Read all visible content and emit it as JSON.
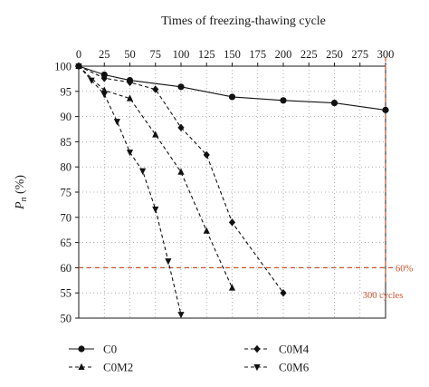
{
  "chart_data": {
    "type": "line",
    "title": "",
    "xlabel": "Times of freezing-thawing cycle",
    "xlabel_position": "top",
    "ylabel_main": "P",
    "ylabel_sub": "n",
    "ylabel_suffix": " (%)",
    "xlim": [
      0,
      300
    ],
    "ylim": [
      50,
      100
    ],
    "x_ticks": [
      0,
      25,
      50,
      75,
      100,
      125,
      150,
      175,
      200,
      225,
      250,
      275,
      300
    ],
    "y_ticks": [
      50,
      55,
      60,
      65,
      70,
      75,
      80,
      85,
      90,
      95,
      100
    ],
    "grid": true,
    "legend_placement": "bottom",
    "series": [
      {
        "name": "C0",
        "marker": "circle",
        "line": "solid",
        "x": [
          0,
          25,
          50,
          100,
          150,
          200,
          250,
          300
        ],
        "y": [
          100,
          98.3,
          97.2,
          95.9,
          93.9,
          93.2,
          92.7,
          91.3
        ]
      },
      {
        "name": "C0M2",
        "marker": "triangle-up",
        "line": "dashed",
        "x": [
          0,
          25,
          50,
          75,
          100,
          125,
          150
        ],
        "y": [
          100,
          95.2,
          93.6,
          86.4,
          79,
          67.3,
          56
        ]
      },
      {
        "name": "C0M4",
        "marker": "diamond",
        "line": "dashed",
        "x": [
          0,
          25,
          50,
          75,
          100,
          125,
          150,
          200
        ],
        "y": [
          100,
          97.6,
          96.8,
          95.4,
          87.8,
          82.4,
          69,
          55
        ]
      },
      {
        "name": "C0M6",
        "marker": "triangle-down",
        "line": "dashed",
        "x": [
          0,
          12.5,
          25,
          37.5,
          50,
          62.5,
          75,
          87.5,
          100
        ],
        "y": [
          100,
          97.2,
          94.4,
          89,
          82.9,
          79.2,
          71.6,
          61.3,
          50.7
        ]
      }
    ],
    "reference_lines": [
      {
        "axis": "y",
        "value": 60,
        "label": "60%",
        "color": "#c8512b"
      },
      {
        "axis": "x",
        "value": 300,
        "label": "300 cycles",
        "color": "#c8512b"
      }
    ]
  }
}
